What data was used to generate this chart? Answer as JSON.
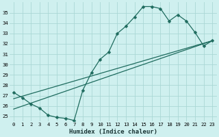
{
  "xlabel": "Humidex (Indice chaleur)",
  "bg_color": "#cff0ef",
  "line_color": "#1e6b5e",
  "grid_color": "#aad8d5",
  "xlim": [
    -0.5,
    23.5
  ],
  "ylim": [
    24.5,
    36.0
  ],
  "xticks": [
    0,
    1,
    2,
    3,
    4,
    5,
    6,
    7,
    8,
    9,
    10,
    11,
    12,
    13,
    14,
    15,
    16,
    17,
    18,
    19,
    20,
    21,
    22,
    23
  ],
  "yticks": [
    25,
    26,
    27,
    28,
    29,
    30,
    31,
    32,
    33,
    34,
    35
  ],
  "curve_x": [
    0,
    1,
    2,
    3,
    4,
    5,
    6,
    7,
    8,
    9,
    10,
    11,
    12,
    13,
    14,
    15,
    16,
    17,
    18,
    19,
    20,
    21,
    22,
    23
  ],
  "curve_y": [
    27.3,
    26.8,
    26.2,
    25.8,
    25.1,
    24.9,
    24.8,
    24.6,
    27.5,
    29.2,
    30.5,
    31.2,
    33.0,
    33.7,
    34.6,
    35.6,
    35.6,
    35.4,
    34.2,
    34.8,
    34.2,
    33.1,
    31.8,
    32.3
  ],
  "line1_x": [
    0,
    23
  ],
  "line1_y": [
    26.7,
    32.3
  ],
  "line2_x": [
    0,
    23
  ],
  "line2_y": [
    25.7,
    32.3
  ],
  "marker_size": 2.5,
  "line_width": 0.9,
  "xlabel_fontsize": 6.5,
  "tick_fontsize": 5.2
}
